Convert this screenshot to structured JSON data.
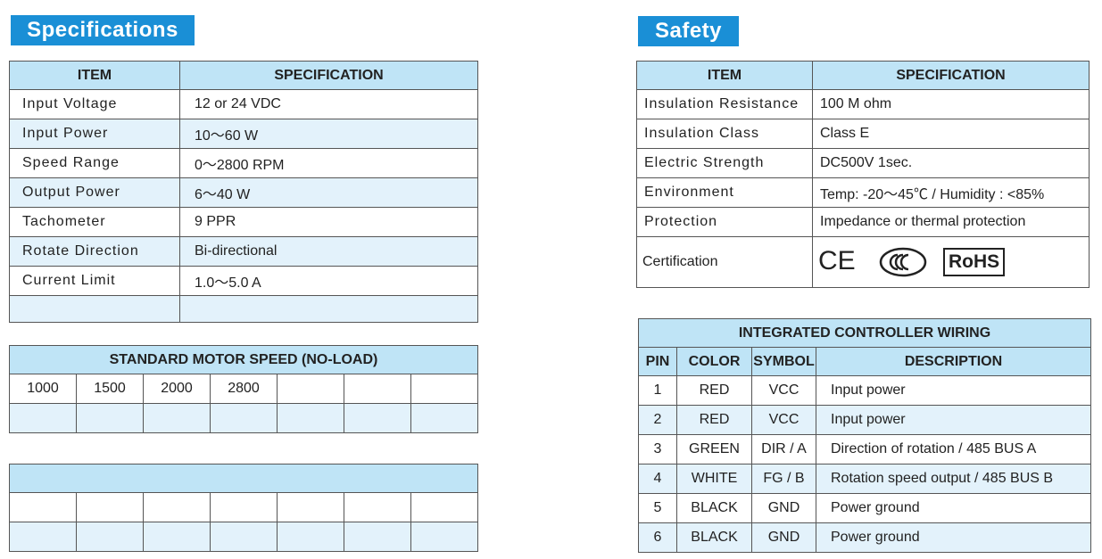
{
  "specifications": {
    "title": "Specifications",
    "header": [
      "ITEM",
      "SPECIFICATION"
    ],
    "rows": [
      [
        "Input Voltage",
        "12 or 24 VDC"
      ],
      [
        "Input Power",
        "10～60 W"
      ],
      [
        "Speed Range",
        "0～2800 RPM"
      ],
      [
        "Output Power",
        "6～40  W"
      ],
      [
        "Tachometer",
        "9 PPR"
      ],
      [
        "Rotate Direction",
        "Bi-directional"
      ],
      [
        "Current Limit",
        "1.0～5.0 A"
      ]
    ]
  },
  "motor_speed": {
    "title": "STANDARD MOTOR SPEED (NO-LOAD)",
    "values": [
      1000,
      1500,
      2000,
      2800
    ]
  },
  "safety": {
    "title": "Safety",
    "header": [
      "ITEM",
      "SPECIFICATION"
    ],
    "rows": [
      [
        "Insulation Resistance",
        "100 M ohm"
      ],
      [
        "Insulation Class",
        "Class E"
      ],
      [
        "Electric Strength",
        "DC500V  1sec."
      ],
      [
        "Environment",
        "Temp: -20～45℃ / Humidity :  <85%"
      ],
      [
        "Protection",
        "Impedance or thermal protection"
      ]
    ],
    "certification": {
      "label": "Certification",
      "marks": [
        "CE",
        "RoHS"
      ]
    }
  },
  "wiring": {
    "title": "INTEGRATED CONTROLLER WIRING",
    "header": [
      "PIN",
      "COLOR",
      "SYMBOL",
      "DESCRIPTION"
    ],
    "rows": [
      [
        1,
        "RED",
        "VCC",
        "Input power"
      ],
      [
        2,
        "RED",
        "VCC",
        "Input power"
      ],
      [
        3,
        "GREEN",
        "DIR / A",
        "Direction of rotation  /  485 BUS A"
      ],
      [
        4,
        "WHITE",
        "FG / B",
        "Rotation speed output  /  485 BUS B"
      ],
      [
        5,
        "BLACK",
        "GND",
        "Power ground"
      ],
      [
        6,
        "BLACK",
        "GND",
        "Power ground"
      ]
    ]
  }
}
